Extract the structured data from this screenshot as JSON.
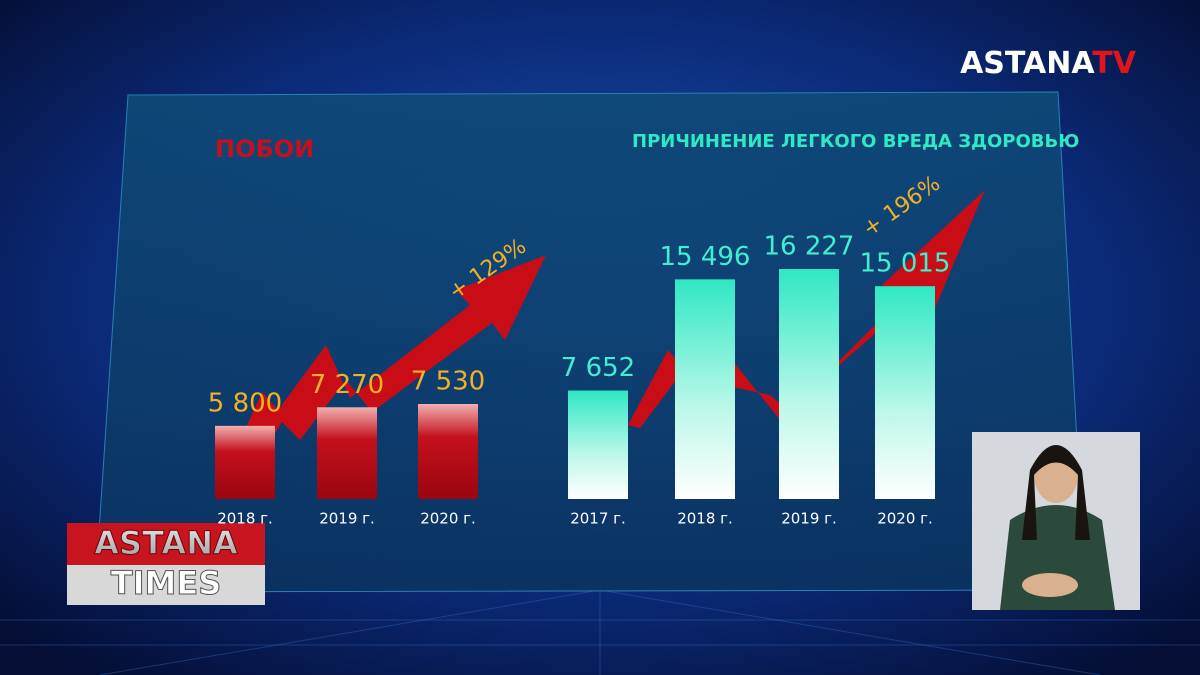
{
  "logo": {
    "main": "ASTANA",
    "accent": "TV"
  },
  "show": {
    "line1": "ASTANA",
    "line2": "TIMES"
  },
  "chart_data": [
    {
      "type": "bar",
      "title": "ПОБОИ",
      "categories": [
        "2018 г.",
        "2019 г.",
        "2020 г."
      ],
      "values": [
        5800,
        7270,
        7530
      ],
      "value_labels": [
        "5 800",
        "7 270",
        "7 530"
      ],
      "color": "#c3101c",
      "annotation": "+ 129%"
    },
    {
      "type": "bar",
      "title": "ПРИЧИНЕНИЕ ЛЕГКОГО ВРЕДА ЗДОРОВЬЮ",
      "categories": [
        "2017 г.",
        "2018 г.",
        "2019 г.",
        "2020 г."
      ],
      "values": [
        7652,
        15496,
        16227,
        15015
      ],
      "value_labels": [
        "7 652",
        "15 496",
        "16 227",
        "15 015"
      ],
      "color": "#2fe8c4",
      "annotation": "+ 196%"
    }
  ]
}
